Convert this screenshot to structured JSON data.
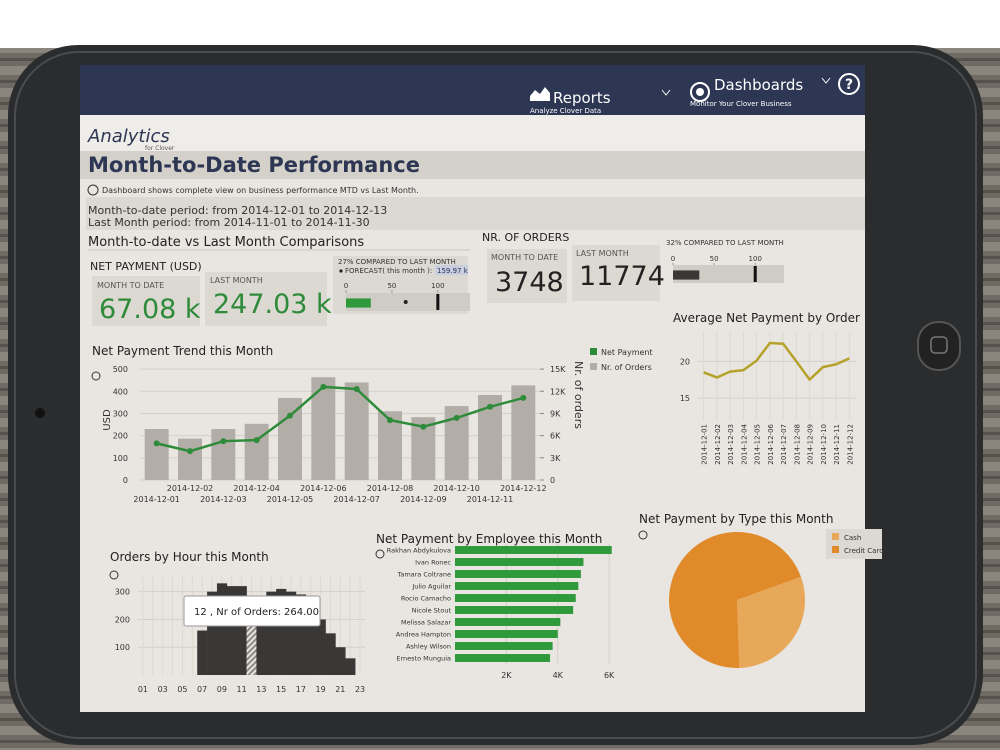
{
  "nav": {
    "reports": "Reports",
    "reports_sub": "Analyze Clover Data",
    "dashboards": "Dashboards",
    "dashboards_sub": "Monitor Your Clover Business",
    "help": "?"
  },
  "header": {
    "logo": "Analytics",
    "logo_sub": "for Clover",
    "title": "Month-to-Date Performance",
    "info": "Dashboard shows complete view on business performance MTD vs Last Month.",
    "period_mtd": "Month-to-date period: from 2014-12-01 to 2014-12-13",
    "period_last": "Last Month period: from 2014-11-01 to 2014-11-30",
    "section": "Month-to-date vs Last Month Comparisons"
  },
  "net_payment": {
    "title": "NET PAYMENT (USD)",
    "mtd_label": "MONTH TO DATE",
    "mtd": "67.08 k",
    "last_label": "LAST MONTH",
    "last": "247.03 k",
    "compare": "27% COMPARED TO LAST MONTH",
    "forecast_label": "FORECAST( this month ):",
    "forecast": "159.97 k",
    "bullet": {
      "value": 27,
      "forecast": 65,
      "target": 100,
      "xlim": [
        0,
        135
      ],
      "xticks": [
        0,
        50,
        100
      ]
    }
  },
  "orders": {
    "title": "NR. OF ORDERS",
    "mtd_label": "MONTH TO DATE",
    "mtd": "3748",
    "last_label": "LAST MONTH",
    "last": "11774",
    "compare": "32% COMPARED TO LAST MONTH",
    "bullet": {
      "value": 32,
      "target": 100,
      "xlim": [
        0,
        135
      ],
      "xticks": [
        0,
        50,
        100
      ]
    }
  },
  "chart_data": [
    {
      "type": "bar-line",
      "title": "Net Payment Trend this Month",
      "ylabel": "USD",
      "y2label": "Nr. of orders",
      "categories": [
        "2014-12-01",
        "2014-12-02",
        "2014-12-03",
        "2014-12-04",
        "2014-12-05",
        "2014-12-06",
        "2014-12-07",
        "2014-12-08",
        "2014-12-09",
        "2014-12-10",
        "2014-12-11",
        "2014-12-12"
      ],
      "ylim": [
        0,
        550
      ],
      "yticks": [
        0,
        100,
        200,
        300,
        400,
        500
      ],
      "y2lim": [
        0,
        16500
      ],
      "y2ticks": [
        0,
        {
          "value": 3000,
          "label": "3K"
        },
        {
          "value": 6000,
          "label": "6K"
        },
        {
          "value": 9000,
          "label": "9K"
        },
        {
          "value": 12000,
          "label": "12K"
        },
        {
          "value": 15000,
          "label": "15K"
        }
      ],
      "series": [
        {
          "name": "Net Payment",
          "color": "#2e8b3a",
          "type": "line",
          "values": [
            165,
            130,
            175,
            180,
            290,
            420,
            410,
            270,
            240,
            280,
            330,
            370
          ]
        },
        {
          "name": "Nr. of Orders",
          "color": "#b3ada7",
          "type": "bar",
          "axis": "y2",
          "values": [
            6900,
            5600,
            6900,
            7600,
            11100,
            13900,
            13200,
            9300,
            8500,
            10000,
            11500,
            12800
          ]
        }
      ],
      "grid": true
    },
    {
      "type": "line",
      "title": "Average Net Payment by Order",
      "categories": [
        "2014-12-01",
        "2014-12-02",
        "2014-12-03",
        "2014-12-04",
        "2014-12-05",
        "2014-12-06",
        "2014-12-07",
        "2014-12-08",
        "2014-12-09",
        "2014-12-10",
        "2014-12-11",
        "2014-12-12"
      ],
      "values": [
        18.5,
        17.8,
        18.6,
        18.8,
        20.1,
        22.5,
        22.4,
        20.0,
        17.5,
        19.2,
        19.6,
        20.4
      ],
      "color": "#b5a22a",
      "ylim": [
        12,
        24
      ],
      "yticks": [
        15,
        20
      ],
      "grid": true
    },
    {
      "type": "bar",
      "title": "Orders by Hour this Month",
      "categories": [
        "01",
        null,
        "03",
        null,
        "05",
        null,
        "07",
        null,
        "09",
        null,
        "11",
        null,
        "13",
        null,
        "15",
        null,
        "17",
        null,
        "19",
        null,
        "21",
        null,
        "23"
      ],
      "values": [
        0,
        0,
        0,
        0,
        0,
        0,
        160,
        300,
        330,
        320,
        320,
        264,
        280,
        300,
        310,
        300,
        290,
        240,
        200,
        150,
        100,
        60,
        0
      ],
      "color": "#3a3836",
      "ylim": [
        0,
        360
      ],
      "yticks": [
        100,
        200,
        300
      ],
      "grid": true,
      "tooltip": "12 , Nr of Orders: 264.00"
    },
    {
      "type": "hbar",
      "title": "Net Payment by Employee this Month",
      "categories": [
        "Rakhan Abdykulova",
        "Ivan Ronec",
        "Tamara Coltrane",
        "Julio Aguilar",
        "Rocio Camacho",
        "Nicole Stout",
        "Melissa Salazar",
        "Andrea Hampton",
        "Ashley Wilson",
        "Ernesto Munguia"
      ],
      "values": [
        6100,
        5000,
        4900,
        4800,
        4700,
        4600,
        4100,
        4000,
        3800,
        3700
      ],
      "color": "#2e9a3c",
      "xlim": [
        0,
        6500
      ],
      "xticks": [
        {
          "value": 2000,
          "label": "2K"
        },
        {
          "value": 4000,
          "label": "4K"
        },
        {
          "value": 6000,
          "label": "6K"
        }
      ],
      "grid": true
    },
    {
      "type": "pie",
      "title": "Net Payment by Type this Month",
      "categories": [
        "Cash",
        "Credit Card"
      ],
      "values": [
        30,
        70
      ],
      "colors": [
        "#e8a85a",
        "#e08a2a"
      ]
    }
  ]
}
